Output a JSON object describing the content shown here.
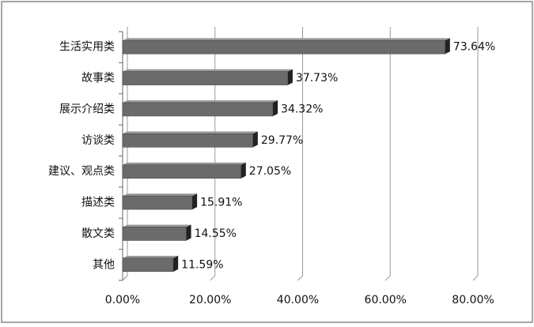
{
  "chart_data": {
    "type": "bar",
    "orientation": "horizontal",
    "categories": [
      "生活实用类",
      "故事类",
      "展示介绍类",
      "访谈类",
      "建议、观点类",
      "描述类",
      "散文类",
      "其他"
    ],
    "values": [
      73.64,
      37.73,
      34.32,
      29.77,
      27.05,
      15.91,
      14.55,
      11.59
    ],
    "value_labels": [
      "73.64%",
      "37.73%",
      "34.32%",
      "29.77%",
      "27.05%",
      "15.91%",
      "14.55%",
      "11.59%"
    ],
    "color": "#6b6b6b",
    "xlim": [
      0,
      80
    ],
    "xticks": [
      {
        "value": 0,
        "label": "0.00%"
      },
      {
        "value": 20,
        "label": "20.00%"
      },
      {
        "value": 40,
        "label": "40.00%"
      },
      {
        "value": 60,
        "label": "60.00%"
      },
      {
        "value": 80,
        "label": "80.00%"
      }
    ],
    "grid": true
  }
}
